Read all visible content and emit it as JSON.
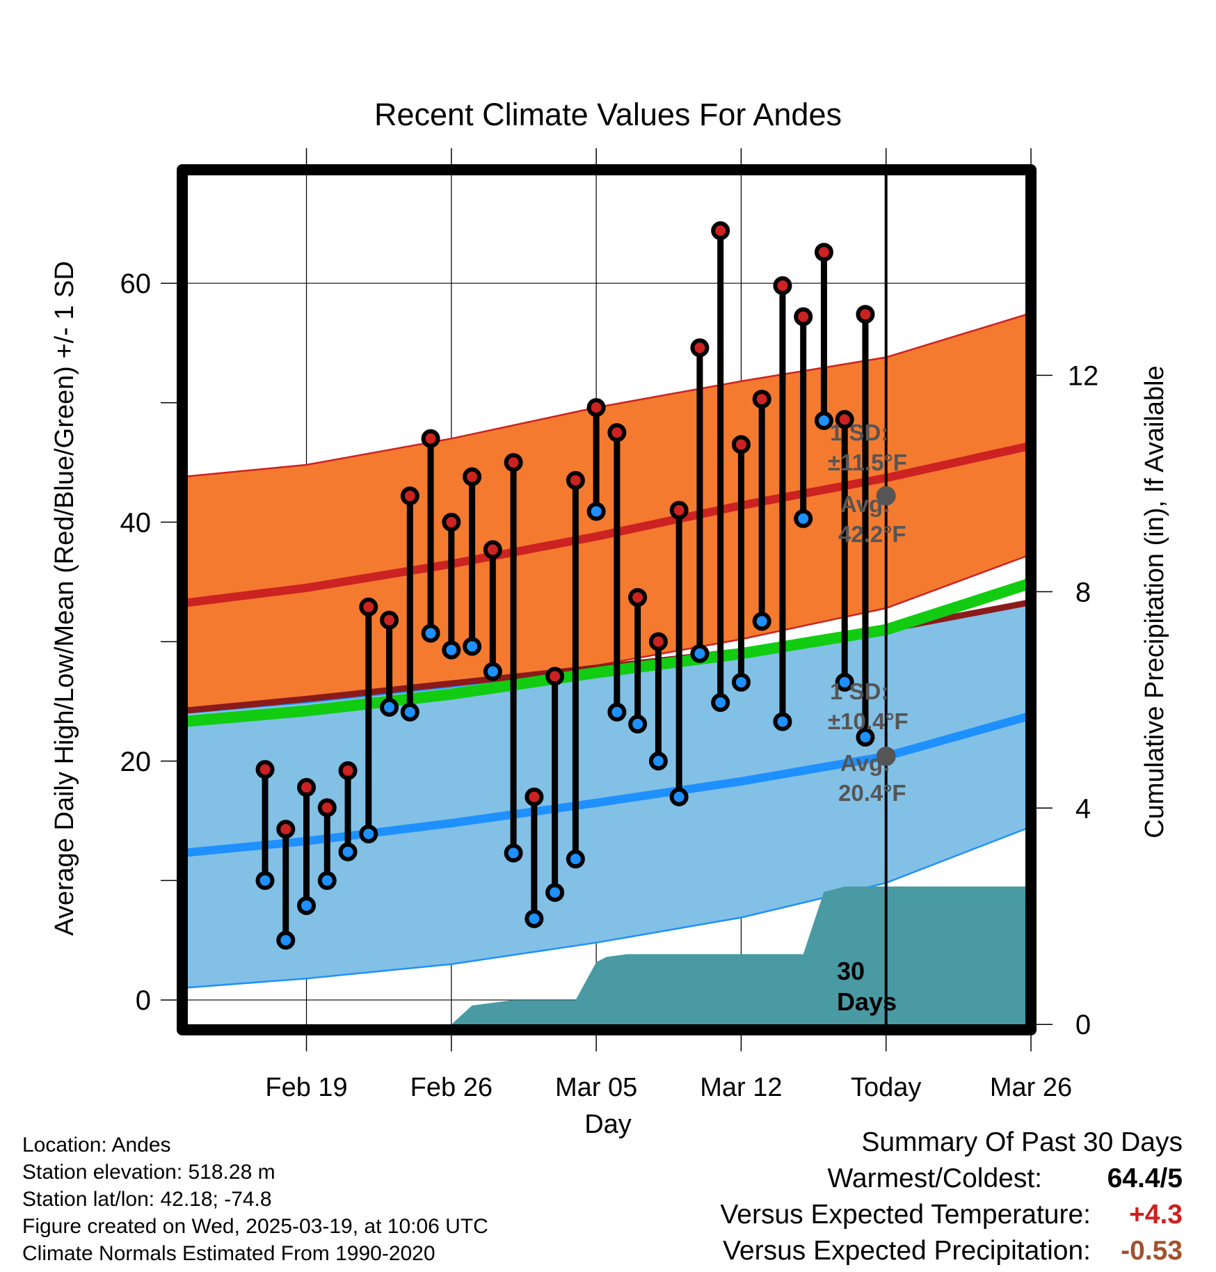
{
  "colors": {
    "high": "#cc2222",
    "low": "#1e90ff",
    "high_band": "#f47a30",
    "low_band": "#82c0e6",
    "mean": "#11cc11",
    "precip": "#4a9aa4",
    "annotation": "#555555",
    "warm": "#cc2222",
    "dry": "#a0522d"
  },
  "chart_data": {
    "type": "line",
    "title": "Recent Climate Values For Andes",
    "xlabel": "Day",
    "ylabel": "Average Daily High/Low/Mean (Red/Blue/Green) +/- 1 SD",
    "y2label": "Cumulative Precipitation (in), If Available",
    "x_range": [
      -3,
      38
    ],
    "ylim": [
      -2.5,
      69.5
    ],
    "y2lim": [
      -0.1,
      15.8
    ],
    "x_ticks": [
      {
        "day": 3,
        "label": "Feb 19"
      },
      {
        "day": 10,
        "label": "Feb 26"
      },
      {
        "day": 17,
        "label": "Mar 05"
      },
      {
        "day": 24,
        "label": "Mar 12"
      },
      {
        "day": 31,
        "label": "Today"
      },
      {
        "day": 38,
        "label": "Mar 26"
      }
    ],
    "y_ticks": [
      0,
      20,
      40,
      60
    ],
    "y_minor_ticks": [
      10,
      30,
      50
    ],
    "y2_ticks": [
      0,
      4,
      8,
      12
    ],
    "today_day": 31,
    "today_label": "30\nDays",
    "normal_days": [
      -3,
      3,
      10,
      17,
      24,
      31,
      38
    ],
    "normal_high": [
      33.2,
      34.5,
      36.5,
      38.8,
      41.4,
      43.7,
      46.4
    ],
    "normal_high_upper": [
      43.8,
      44.8,
      47.0,
      49.6,
      51.8,
      53.8,
      57.5
    ],
    "normal_high_lower": [
      24.2,
      25.2,
      26.5,
      28.0,
      30.2,
      32.8,
      37.3
    ],
    "normal_low": [
      12.3,
      13.3,
      14.8,
      16.5,
      18.3,
      20.4,
      23.8
    ],
    "normal_low_upper": [
      24.0,
      24.9,
      26.2,
      27.8,
      29.2,
      31.0,
      33.3
    ],
    "normal_low_lower": [
      1.0,
      1.8,
      3.0,
      4.8,
      6.9,
      9.8,
      14.5
    ],
    "normal_mean": [
      23.3,
      24.2,
      25.6,
      27.4,
      29.0,
      31.0,
      34.9
    ],
    "daily_days": [
      1,
      2,
      3,
      4,
      5,
      6,
      7,
      8,
      9,
      10,
      11,
      12,
      13,
      14,
      15,
      16,
      17,
      18,
      19,
      20,
      21,
      22,
      23,
      24,
      25,
      26,
      27,
      28,
      29,
      30
    ],
    "daily_high": [
      19.3,
      14.3,
      17.8,
      16.1,
      19.2,
      32.9,
      31.8,
      42.2,
      47.0,
      40.0,
      43.8,
      37.7,
      45.0,
      17.0,
      27.1,
      43.5,
      49.6,
      47.5,
      33.7,
      30.0,
      41.0,
      54.6,
      64.4,
      46.5,
      50.3,
      59.8,
      57.2,
      62.6,
      48.6,
      57.4
    ],
    "daily_low": [
      10.0,
      5.0,
      7.9,
      10.0,
      12.4,
      13.9,
      24.5,
      24.1,
      30.7,
      29.3,
      29.6,
      27.5,
      12.3,
      6.8,
      9.0,
      11.8,
      40.9,
      24.1,
      23.1,
      20.0,
      17.0,
      29.0,
      24.9,
      26.6,
      31.7,
      23.3,
      40.3,
      48.5,
      26.6,
      22.0
    ],
    "precip_days": [
      10,
      11,
      13,
      16,
      17,
      17.5,
      18.5,
      27,
      28,
      29,
      38
    ],
    "precip_values": [
      0,
      0.35,
      0.45,
      0.45,
      1.15,
      1.25,
      1.3,
      1.3,
      2.45,
      2.55,
      2.55
    ],
    "annotations": {
      "high_sd": "1 SD:",
      "high_sd_val": "±11.5°F",
      "high_avg": "Avg:",
      "high_avg_val": "42.2°F",
      "low_sd": "1 SD:",
      "low_sd_val": "±10.4°F",
      "low_avg": "Avg:",
      "low_avg_val": "20.4°F",
      "today_high_avg": 42.2,
      "today_low_avg": 20.4
    }
  },
  "footer": {
    "location": "Location: Andes",
    "elevation": "Station elevation: 518.28 m",
    "latlon": "Station lat/lon: 42.18; -74.8",
    "created": "Figure created on Wed, 2025-03-19, at 10:06 UTC",
    "normals": "Climate Normals Estimated From 1990-2020"
  },
  "summary": {
    "title": "Summary Of Past 30 Days",
    "warmest_label": "Warmest/Coldest:",
    "warmest_value": "64.4/5",
    "temp_label": "Versus Expected Temperature:",
    "temp_value": "+4.3",
    "precip_label": "Versus Expected Precipitation:",
    "precip_value": "-0.53"
  }
}
